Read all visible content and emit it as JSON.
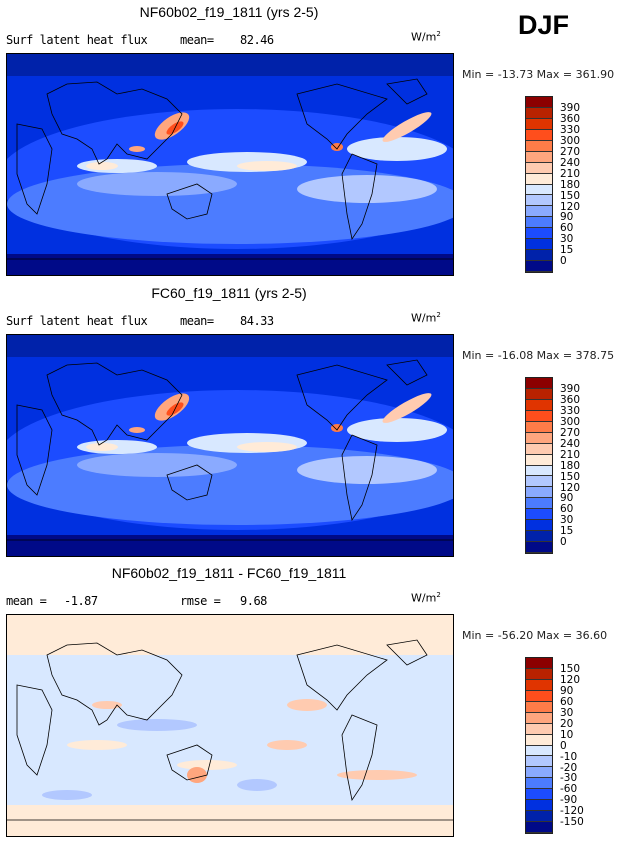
{
  "season": "DJF",
  "chart_data": [
    {
      "type": "heatmap",
      "title": "NF60b02_f19_1811 (yrs 2-5)",
      "variable": "Surf latent heat flux",
      "mean_label": "mean=",
      "mean": "82.46",
      "units": "W/m",
      "units_sup": "2",
      "min_max": "Min = -13.73 Max = 361.90",
      "levels": [
        "390",
        "360",
        "330",
        "300",
        "270",
        "240",
        "210",
        "180",
        "150",
        "120",
        "90",
        "60",
        "30",
        "15",
        "0"
      ]
    },
    {
      "type": "heatmap",
      "title": "FC60_f19_1811 (yrs 2-5)",
      "variable": "Surf latent heat flux",
      "mean_label": "mean=",
      "mean": "84.33",
      "units": "W/m",
      "units_sup": "2",
      "min_max": "Min = -16.08 Max = 378.75",
      "levels": [
        "390",
        "360",
        "330",
        "300",
        "270",
        "240",
        "210",
        "180",
        "150",
        "120",
        "90",
        "60",
        "30",
        "15",
        "0"
      ]
    },
    {
      "type": "heatmap",
      "title": "NF60b02_f19_1811 - FC60_f19_1811",
      "variable": "",
      "mean_label": "mean =",
      "mean": "-1.87",
      "rmse_label": "rmse =",
      "rmse": "9.68",
      "units": "W/m",
      "units_sup": "2",
      "min_max": "Min = -56.20 Max =  36.60",
      "levels": [
        "150",
        "120",
        "90",
        "60",
        "30",
        "20",
        "10",
        "0",
        "-10",
        "-20",
        "-30",
        "-60",
        "-90",
        "-120",
        "-150"
      ]
    }
  ],
  "colors": [
    "#8c0000",
    "#b82200",
    "#e03400",
    "#ff4e1c",
    "#ff7c48",
    "#ffa67e",
    "#ffcbb0",
    "#ffebd8",
    "#d8e8ff",
    "#b2c8ff",
    "#8aaaff",
    "#4c7cff",
    "#1c4cff",
    "#0030e0",
    "#0022aa",
    "#000a88"
  ]
}
